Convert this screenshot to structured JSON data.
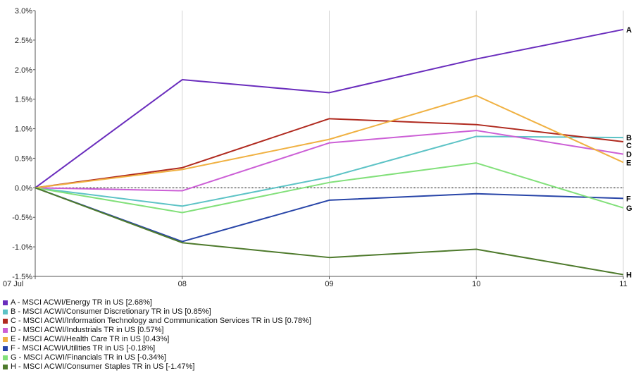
{
  "chart_data": {
    "type": "line",
    "x": [
      "07 Jul",
      "08",
      "09",
      "10",
      "11"
    ],
    "ylim": [
      -1.5,
      3.0
    ],
    "yticks": [
      "3.0%",
      "2.5%",
      "2.0%",
      "1.5%",
      "1.0%",
      "0.5%",
      "0.0%",
      "-0.5%",
      "-1.0%",
      "-1.5%"
    ],
    "grid": true,
    "legend_position": "bottom",
    "series": [
      {
        "key": "A",
        "name": "A - MSCI ACWI/Energy TR in US [2.68%]",
        "color": "#6a2dbd",
        "values": [
          0,
          1.83,
          1.61,
          2.18,
          2.68
        ]
      },
      {
        "key": "B",
        "name": "B - MSCI ACWI/Consumer Discretionary TR in US [0.85%]",
        "color": "#5dc3c6",
        "values": [
          0,
          -0.31,
          0.18,
          0.87,
          0.85
        ]
      },
      {
        "key": "C",
        "name": "C - MSCI ACWI/Information Technology and Communication Services TR in US [0.78%]",
        "color": "#b02a1f",
        "values": [
          0,
          0.34,
          1.17,
          1.07,
          0.78
        ]
      },
      {
        "key": "D",
        "name": "D - MSCI ACWI/Industrials TR in US [0.57%]",
        "color": "#cc5fd6",
        "values": [
          0,
          -0.05,
          0.76,
          0.97,
          0.57
        ]
      },
      {
        "key": "E",
        "name": "E - MSCI ACWI/Health Care TR in US [0.43%]",
        "color": "#f0b142",
        "values": [
          0,
          0.31,
          0.82,
          1.56,
          0.43
        ]
      },
      {
        "key": "F",
        "name": "F - MSCI ACWI/Utilities TR in US [-0.18%]",
        "color": "#2845a8",
        "values": [
          0,
          -0.91,
          -0.21,
          -0.1,
          -0.18
        ]
      },
      {
        "key": "G",
        "name": "G - MSCI ACWI/Financials TR in US [-0.34%]",
        "color": "#82e07a",
        "values": [
          0,
          -0.42,
          0.09,
          0.42,
          -0.34
        ]
      },
      {
        "key": "H",
        "name": "H - MSCI ACWI/Consumer Staples TR in US [-1.47%]",
        "color": "#4e7a2c",
        "values": [
          0,
          -0.93,
          -1.18,
          -1.04,
          -1.47
        ]
      }
    ]
  }
}
